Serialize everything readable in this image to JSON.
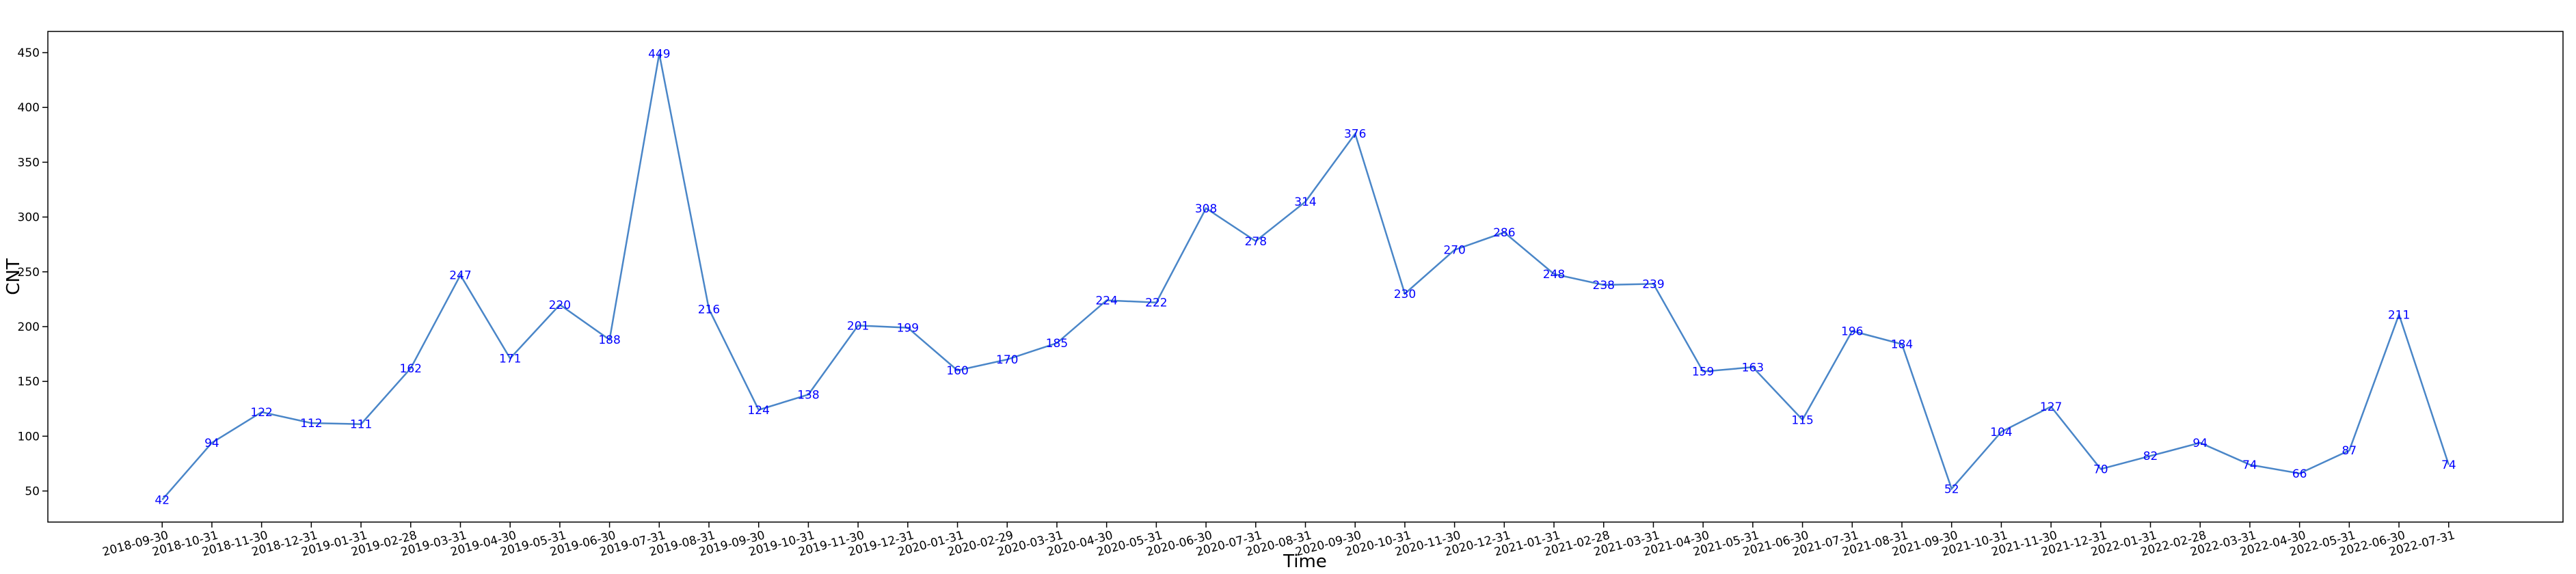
{
  "chart_data": {
    "type": "line",
    "xlabel": "Time",
    "ylabel": "CNT",
    "categories": [
      "2018-09-30",
      "2018-10-31",
      "2018-11-30",
      "2018-12-31",
      "2019-01-31",
      "2019-02-28",
      "2019-03-31",
      "2019-04-30",
      "2019-05-31",
      "2019-06-30",
      "2019-07-31",
      "2019-08-31",
      "2019-09-30",
      "2019-10-31",
      "2019-11-30",
      "2019-12-31",
      "2020-01-31",
      "2020-02-29",
      "2020-03-31",
      "2020-04-30",
      "2020-05-31",
      "2020-06-30",
      "2020-07-31",
      "2020-08-31",
      "2020-09-30",
      "2020-10-31",
      "2020-11-30",
      "2020-12-31",
      "2021-01-31",
      "2021-02-28",
      "2021-03-31",
      "2021-04-30",
      "2021-05-31",
      "2021-06-30",
      "2021-07-31",
      "2021-08-31",
      "2021-09-30",
      "2021-10-31",
      "2021-11-30",
      "2021-12-31",
      "2022-01-31",
      "2022-02-28",
      "2022-03-31",
      "2022-04-30",
      "2022-05-31",
      "2022-06-30",
      "2022-07-31"
    ],
    "values": [
      42,
      94,
      122,
      112,
      111,
      162,
      247,
      171,
      220,
      188,
      449,
      216,
      124,
      138,
      201,
      199,
      160,
      170,
      185,
      224,
      222,
      308,
      278,
      314,
      376,
      230,
      270,
      286,
      248,
      238,
      239,
      159,
      163,
      115,
      196,
      184,
      52,
      104,
      127,
      70,
      82,
      94,
      74,
      66,
      87,
      211,
      74
    ],
    "color": "#4a86c8",
    "value_label_color": "blue",
    "ylim": [
      21.65,
      469.35
    ],
    "yticks": [
      50,
      100,
      150,
      200,
      250,
      300,
      350,
      400,
      450
    ]
  }
}
